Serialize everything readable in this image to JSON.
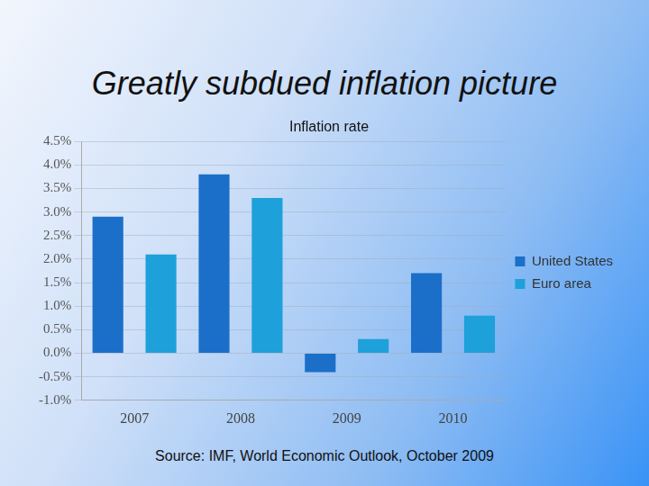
{
  "chart_data": {
    "type": "bar",
    "title": "Greatly subdued inflation picture",
    "subtitle": "Inflation rate",
    "annotations": [
      "Source: IMF, World Economic Outlook, October 2009"
    ],
    "categories": [
      "2007",
      "2008",
      "2009",
      "2010"
    ],
    "series": [
      {
        "name": "United States",
        "color": "#1b6fc8",
        "values": [
          2.9,
          3.8,
          -0.4,
          1.7
        ]
      },
      {
        "name": "Euro area",
        "color": "#1ea0da",
        "values": [
          2.1,
          3.3,
          0.3,
          0.8
        ]
      }
    ],
    "ylim": [
      -1.0,
      4.5
    ],
    "yticks": [
      {
        "value": -1.0,
        "label": "-1.0%"
      },
      {
        "value": -0.5,
        "label": "-0.5%"
      },
      {
        "value": 0.0,
        "label": "0.0%"
      },
      {
        "value": 0.5,
        "label": "0.5%"
      },
      {
        "value": 1.0,
        "label": "1.0%"
      },
      {
        "value": 1.5,
        "label": "1.5%"
      },
      {
        "value": 2.0,
        "label": "2.0%"
      },
      {
        "value": 2.5,
        "label": "2.5%"
      },
      {
        "value": 3.0,
        "label": "3.0%"
      },
      {
        "value": 3.5,
        "label": "3.5%"
      },
      {
        "value": 4.0,
        "label": "4.0%"
      },
      {
        "value": 4.5,
        "label": "4.5%"
      }
    ],
    "grid": true,
    "legend": "right"
  }
}
